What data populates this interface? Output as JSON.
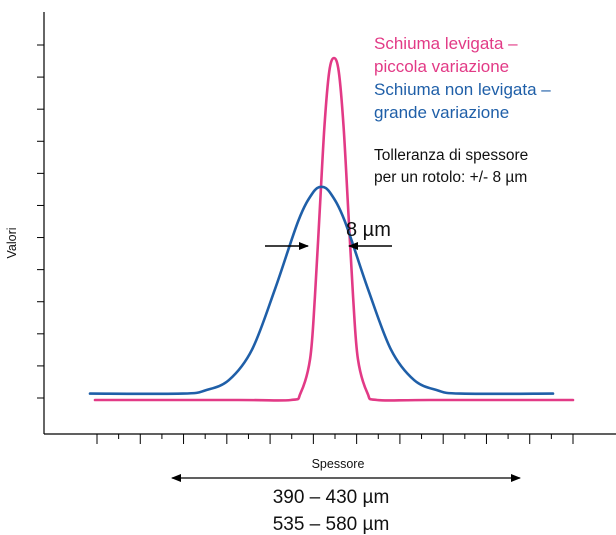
{
  "chart_data": {
    "type": "line",
    "title": "",
    "xlabel": "Spessore",
    "ylabel": "Valori",
    "colors": {
      "pink": "#e23a86",
      "blue": "#1f5fa8",
      "axis": "#000000"
    },
    "series": [
      {
        "name": "Schiuma levigata – piccola variazione",
        "color": "#e23a86",
        "legend_lines": [
          "Schiuma levigata –",
          "piccola variazione"
        ],
        "x": [
          0,
          0.3,
          0.41,
          0.43,
          0.45,
          0.46,
          0.47,
          0.48,
          0.49,
          0.5,
          0.51,
          0.52,
          0.53,
          0.54,
          0.55,
          0.57,
          0.59,
          0.7,
          1
        ],
        "y": [
          0,
          0,
          0,
          0.02,
          0.12,
          0.3,
          0.55,
          0.8,
          0.96,
          1,
          0.96,
          0.8,
          0.55,
          0.3,
          0.12,
          0.02,
          0,
          0,
          0
        ]
      },
      {
        "name": "Schiuma non levigata – grande variazione",
        "color": "#1f5fa8",
        "legend_lines": [
          "Schiuma non levigata –",
          "grande variazione"
        ],
        "x": [
          0,
          0.2,
          0.25,
          0.3,
          0.35,
          0.4,
          0.45,
          0.48,
          0.5,
          0.52,
          0.55,
          0.6,
          0.65,
          0.7,
          0.75,
          0.8,
          1
        ],
        "y": [
          0.01,
          0.01,
          0.02,
          0.05,
          0.14,
          0.32,
          0.52,
          0.6,
          0.62,
          0.6,
          0.52,
          0.32,
          0.14,
          0.05,
          0.02,
          0.01,
          0.01
        ]
      }
    ],
    "annotations": {
      "tolerance_lines": [
        "Tolleranza di spessore",
        "per un rotolo: +/- 8 µm"
      ],
      "width_label": "8 µm",
      "range_lines": [
        "390 – 430 µm",
        "535 – 580 µm"
      ]
    },
    "grid": false,
    "legend_position": "top-right",
    "y_ticks": 12,
    "x_ticks": 12
  }
}
